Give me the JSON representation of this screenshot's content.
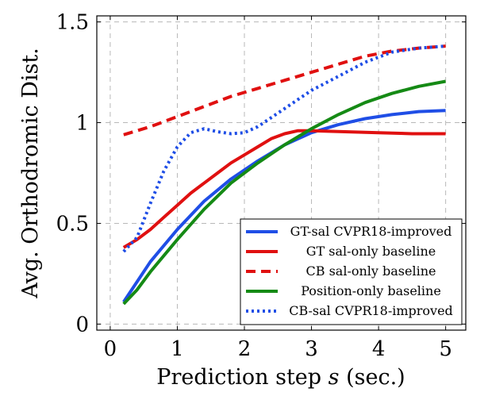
{
  "chart_data": {
    "type": "line",
    "xlabel_main": "Prediction step ",
    "xlabel_var": "s",
    "xlabel_unit": " (sec.)",
    "ylabel": "Avg. Orthodromic Dist.",
    "xlim": [
      -0.2,
      5.3
    ],
    "ylim": [
      -0.03,
      1.53
    ],
    "xticks": [
      0,
      1,
      2,
      3,
      4,
      5
    ],
    "yticks": [
      0,
      0.5,
      1,
      1.5
    ],
    "grid": true,
    "legend_position": "bottom-right",
    "series": [
      {
        "name": "GT-sal CVPR18-improved",
        "color": "#1f4ee6",
        "dash": "solid",
        "x": [
          0.2,
          0.6,
          1.0,
          1.4,
          1.8,
          2.2,
          2.6,
          3.0,
          3.4,
          3.8,
          4.2,
          4.6,
          5.0
        ],
        "y": [
          0.11,
          0.31,
          0.47,
          0.61,
          0.72,
          0.81,
          0.89,
          0.95,
          0.99,
          1.02,
          1.04,
          1.055,
          1.06
        ]
      },
      {
        "name": "GT sal-only baseline",
        "color": "#e01010",
        "dash": "solid",
        "x": [
          0.2,
          0.4,
          0.6,
          0.8,
          1.0,
          1.2,
          1.4,
          1.6,
          1.8,
          2.0,
          2.2,
          2.4,
          2.6,
          2.8,
          3.0,
          3.5,
          4.0,
          4.5,
          5.0
        ],
        "y": [
          0.38,
          0.42,
          0.47,
          0.53,
          0.59,
          0.65,
          0.7,
          0.75,
          0.8,
          0.84,
          0.88,
          0.92,
          0.945,
          0.96,
          0.96,
          0.955,
          0.95,
          0.945,
          0.945
        ]
      },
      {
        "name": "CB sal-only baseline",
        "color": "#e01010",
        "dash": "dashed",
        "x": [
          0.2,
          0.6,
          1.0,
          1.4,
          1.8,
          2.2,
          2.6,
          3.0,
          3.4,
          3.8,
          4.2,
          4.6,
          5.0
        ],
        "y": [
          0.94,
          0.98,
          1.03,
          1.08,
          1.13,
          1.17,
          1.21,
          1.25,
          1.29,
          1.33,
          1.355,
          1.37,
          1.38
        ]
      },
      {
        "name": "Position-only baseline",
        "color": "#158a15",
        "dash": "solid",
        "x": [
          0.2,
          0.4,
          0.6,
          1.0,
          1.4,
          1.8,
          2.2,
          2.6,
          3.0,
          3.4,
          3.8,
          4.2,
          4.6,
          5.0
        ],
        "y": [
          0.1,
          0.17,
          0.26,
          0.42,
          0.57,
          0.7,
          0.8,
          0.89,
          0.97,
          1.04,
          1.1,
          1.145,
          1.18,
          1.205
        ]
      },
      {
        "name": "CB-sal CVPR18-improved",
        "color": "#1f4ee6",
        "dash": "dotted",
        "x": [
          0.2,
          0.4,
          0.6,
          0.8,
          1.0,
          1.2,
          1.4,
          1.6,
          1.8,
          2.0,
          2.2,
          2.6,
          3.0,
          3.4,
          3.8,
          4.2,
          4.6,
          5.0
        ],
        "y": [
          0.36,
          0.43,
          0.6,
          0.76,
          0.88,
          0.95,
          0.97,
          0.955,
          0.945,
          0.95,
          0.98,
          1.07,
          1.16,
          1.23,
          1.3,
          1.35,
          1.37,
          1.38
        ]
      }
    ]
  }
}
